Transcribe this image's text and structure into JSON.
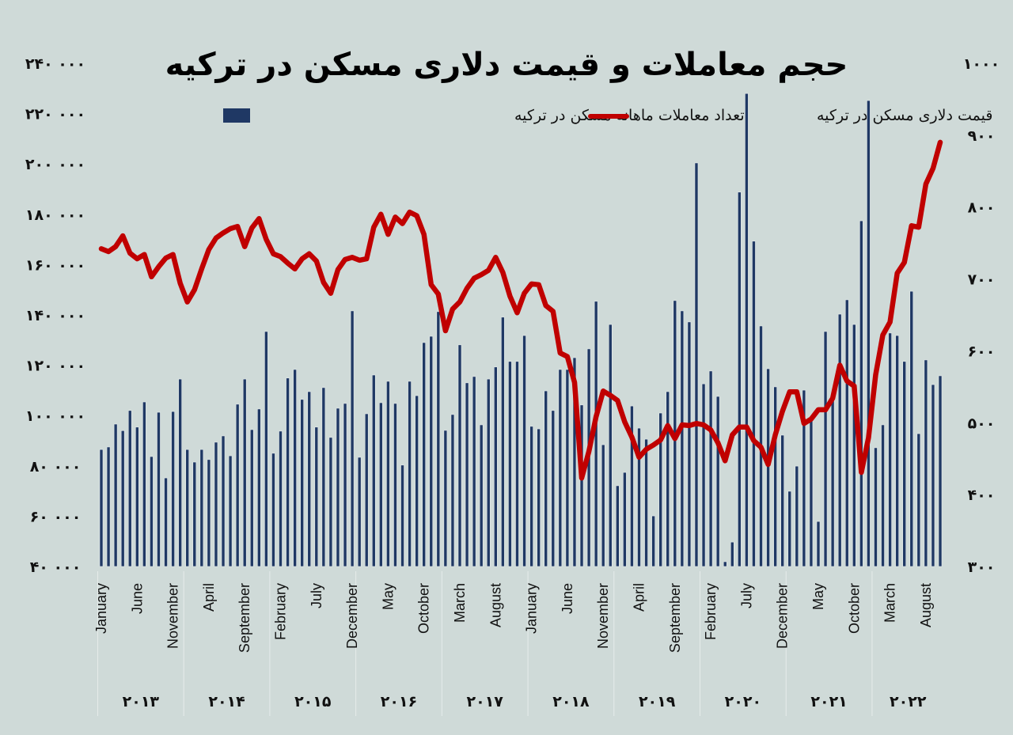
{
  "chart_data": {
    "type": "bar+line",
    "title": "حجم معاملات و قیمت دلاری مسکن در ترکیه",
    "legend": {
      "bars": "تعداد معاملات ماهانه مسکن در ترکیه",
      "line": "قیمت دلاری مسکن در ترکیه",
      "placement": "top"
    },
    "colors": {
      "bars": "#1f3864",
      "line": "#c00000",
      "background": "#cfdad8"
    },
    "left_axis": {
      "ylim": [
        40000,
        240000
      ],
      "ticks": [
        "۴۰ ۰۰۰",
        "۶۰ ۰۰۰",
        "۸۰ ۰۰۰",
        "۱۰۰ ۰۰۰",
        "۱۲۰ ۰۰۰",
        "۱۴۰ ۰۰۰",
        "۱۶۰ ۰۰۰",
        "۱۸۰ ۰۰۰",
        "۲۰۰ ۰۰۰",
        "۲۲۰ ۰۰۰",
        "۲۴۰ ۰۰۰"
      ]
    },
    "right_axis": {
      "ylim": [
        300,
        1000
      ],
      "ticks": [
        "۳۰۰",
        "۴۰۰",
        "۵۰۰",
        "۶۰۰",
        "۷۰۰",
        "۸۰۰",
        "۹۰۰",
        "۱۰۰۰"
      ]
    },
    "month_ticks": [
      "January",
      "June",
      "November",
      "April",
      "September",
      "February",
      "July",
      "December",
      "May",
      "October",
      "March",
      "August",
      "January",
      "June",
      "November",
      "April",
      "September",
      "February",
      "July",
      "December",
      "May",
      "October",
      "March",
      "August"
    ],
    "years": [
      {
        "year": "۲۰۱۳",
        "bars": [
          86500,
          87500,
          96600,
          94000,
          102000,
          95400,
          105400,
          83700,
          101300,
          75200,
          101600,
          114500
        ],
        "price": [
          742,
          738,
          745,
          760,
          736,
          728,
          734,
          703,
          717,
          729,
          734,
          694
        ]
      },
      {
        "year": "۲۰۱۴",
        "bars": [
          86500,
          81500,
          86500,
          82500,
          89400,
          91900,
          84000,
          104500,
          114500,
          94400,
          102600,
          133400
        ],
        "price": [
          668,
          685,
          714,
          741,
          757,
          764,
          770,
          773,
          745,
          771,
          784,
          755
        ]
      },
      {
        "year": "۲۰۱۵",
        "bars": [
          85000,
          93800,
          114900,
          118300,
          106400,
          109500,
          95400,
          111100,
          91300,
          102900,
          104800,
          141600
        ],
        "price": [
          735,
          731,
          722,
          714,
          728,
          735,
          725,
          695,
          680,
          713,
          727,
          730
        ]
      },
      {
        "year": "۲۰۱۶",
        "bars": [
          83400,
          100700,
          116100,
          105100,
          113600,
          104800,
          80300,
          113600,
          107900,
          129000,
          131500,
          141300
        ],
        "price": [
          726,
          728,
          772,
          790,
          762,
          786,
          777,
          793,
          788,
          762,
          692,
          679
        ]
      },
      {
        "year": "۲۰۱۷",
        "bars": [
          94100,
          100400,
          128100,
          113000,
          115500,
          96300,
          114500,
          119300,
          139100,
          121500,
          121500,
          131800
        ],
        "price": [
          628,
          658,
          668,
          687,
          701,
          706,
          712,
          730,
          709,
          676,
          653,
          680
        ]
      },
      {
        "year": "۲۰۱۸",
        "bars": [
          95700,
          94700,
          109800,
          102000,
          118300,
          118300,
          123000,
          104200,
          126500,
          145400,
          88400,
          136200
        ],
        "price": [
          693,
          692,
          663,
          655,
          597,
          592,
          556,
          423,
          460,
          508,
          544,
          538
        ]
      },
      {
        "year": "۲۰۱۹",
        "bars": [
          72100,
          77400,
          103800,
          95000,
          90600,
          60100,
          101000,
          109500,
          145700,
          141600,
          137200,
          200400
        ],
        "price": [
          531,
          501,
          480,
          452,
          463,
          469,
          476,
          496,
          478,
          497,
          496,
          499
        ]
      },
      {
        "year": "۲۰۲۰",
        "bars": [
          112600,
          117700,
          107600,
          41900,
          49700,
          188800,
          228000,
          169300,
          135600,
          118600,
          111400,
          92200
        ],
        "price": [
          497,
          490,
          472,
          447,
          483,
          494,
          494,
          475,
          466,
          442,
          483,
          516
        ]
      },
      {
        "year": "۲۰۲۱",
        "bars": [
          69900,
          79900,
          110100,
          97900,
          57900,
          133400,
          107000,
          140300,
          146000,
          136200,
          177400,
          225200
        ],
        "price": [
          543,
          543,
          499,
          505,
          518,
          518,
          534,
          580,
          558,
          551,
          431,
          479
        ]
      },
      {
        "year": "۲۰۲۲",
        "bars": [
          87200,
          96300,
          132800,
          131800,
          121500,
          149400,
          92800,
          122100,
          112300,
          115800
        ],
        "price": [
          567,
          622,
          640,
          708,
          723,
          774,
          772,
          832,
          854,
          890
        ]
      }
    ]
  }
}
